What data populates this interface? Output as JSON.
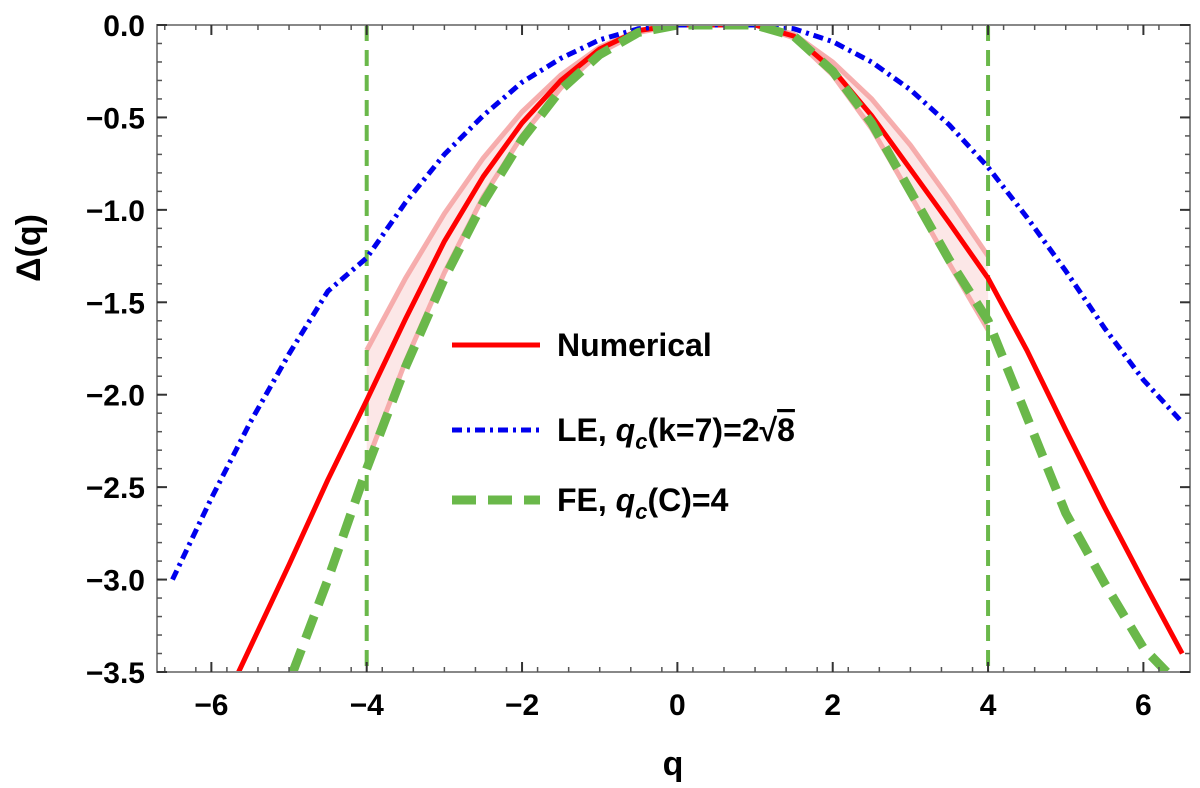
{
  "chart_data": {
    "type": "line",
    "xlabel": "q",
    "ylabel": "Δ(q)",
    "xlim": [
      -6.7,
      6.6
    ],
    "ylim": [
      -3.5,
      0.0
    ],
    "x_ticks": [
      -6,
      -4,
      -2,
      0,
      2,
      4,
      6
    ],
    "x_tick_labels": [
      "−6",
      "−4",
      "−2",
      "0",
      "2",
      "4",
      "6"
    ],
    "y_ticks": [
      0.0,
      -0.5,
      -1.0,
      -1.5,
      -2.0,
      -2.5,
      -3.0,
      -3.5
    ],
    "y_tick_labels": [
      "0.0",
      "−0.5",
      "−1.0",
      "−1.5",
      "−2.0",
      "−2.5",
      "−3.0",
      "−3.5"
    ],
    "grid": false,
    "legend_placement": "center",
    "vertical_lines": [
      {
        "x": -4,
        "color": "#6ab84a",
        "style": "dashed"
      },
      {
        "x": 4,
        "color": "#6ab84a",
        "style": "dashed"
      }
    ],
    "band": {
      "color": "#f4a0a0",
      "x_left": [
        -4.0,
        -3.5,
        -3.0,
        -2.5,
        -2.0,
        -1.5,
        -1.0,
        -0.5,
        0.0
      ],
      "upper_left": [
        -1.76,
        -1.37,
        -1.02,
        -0.72,
        -0.47,
        -0.27,
        -0.12,
        -0.03,
        0.0
      ],
      "lower_left": [
        -2.37,
        -1.82,
        -1.34,
        -0.93,
        -0.6,
        -0.34,
        -0.15,
        -0.04,
        0.0
      ],
      "x_right": [
        1.0,
        1.5,
        2.0,
        2.5,
        3.0,
        3.5,
        4.0
      ],
      "upper_right": [
        0.0,
        -0.05,
        -0.2,
        -0.4,
        -0.65,
        -0.94,
        -1.25
      ],
      "lower_right": [
        0.0,
        -0.07,
        -0.27,
        -0.56,
        -0.92,
        -1.29,
        -1.65
      ]
    },
    "series": [
      {
        "name": "Numerical",
        "color": "#ff0000",
        "style": "solid",
        "x": [
          -5.65,
          -5.0,
          -4.5,
          -4.0,
          -3.5,
          -3.0,
          -2.5,
          -2.0,
          -1.5,
          -1.0,
          -0.5,
          0.0,
          1.0,
          1.5,
          2.0,
          2.5,
          3.0,
          3.5,
          4.0,
          4.5,
          5.0,
          5.5,
          6.0,
          6.5
        ],
        "values": [
          -3.5,
          -2.92,
          -2.46,
          -2.03,
          -1.59,
          -1.17,
          -0.82,
          -0.53,
          -0.3,
          -0.13,
          -0.03,
          0.0,
          0.0,
          -0.06,
          -0.24,
          -0.49,
          -0.78,
          -1.07,
          -1.37,
          -1.76,
          -2.19,
          -2.61,
          -3.01,
          -3.4
        ]
      },
      {
        "name": "LE, q_c(k=7)=2√8",
        "color": "#0000ee",
        "style": "dash-dot",
        "x": [
          -6.5,
          -6.0,
          -5.5,
          -5.0,
          -4.5,
          -4.0,
          -3.5,
          -3.0,
          -2.5,
          -2.0,
          -1.5,
          -1.0,
          -0.5,
          0.0,
          1.0,
          1.5,
          2.0,
          2.5,
          3.0,
          3.5,
          4.0,
          4.5,
          5.0,
          5.5,
          6.0,
          6.5
        ],
        "values": [
          -3.0,
          -2.56,
          -2.15,
          -1.78,
          -1.44,
          -1.26,
          -0.96,
          -0.7,
          -0.49,
          -0.31,
          -0.18,
          -0.08,
          -0.02,
          0.0,
          0.0,
          -0.02,
          -0.09,
          -0.2,
          -0.35,
          -0.54,
          -0.77,
          -1.04,
          -1.33,
          -1.64,
          -1.92,
          -2.15
        ]
      },
      {
        "name": "FE, q_c(C)=4",
        "color": "#6ab84a",
        "style": "dashed",
        "x": [
          -4.95,
          -4.5,
          -4.0,
          -3.5,
          -3.0,
          -2.5,
          -2.0,
          -1.5,
          -1.0,
          -0.5,
          0.0,
          1.0,
          1.5,
          2.0,
          2.5,
          3.0,
          3.5,
          4.0,
          4.5,
          5.0,
          5.5,
          6.0,
          6.3
        ],
        "values": [
          -3.5,
          -3.0,
          -2.4,
          -1.85,
          -1.37,
          -0.96,
          -0.62,
          -0.35,
          -0.16,
          -0.04,
          0.0,
          0.0,
          -0.06,
          -0.25,
          -0.53,
          -0.9,
          -1.27,
          -1.6,
          -2.12,
          -2.64,
          -3.02,
          -3.37,
          -3.5
        ]
      }
    ]
  },
  "legend": [
    {
      "pre": "Numerical",
      "italic": "",
      "post": "",
      "root": ""
    },
    {
      "pre": "LE, ",
      "italic": "q",
      "sub": "c",
      "post": "(k=7)=2",
      "root": "8"
    },
    {
      "pre": "FE, ",
      "italic": "q",
      "sub": "c",
      "post": "(C)=4",
      "root": ""
    }
  ]
}
